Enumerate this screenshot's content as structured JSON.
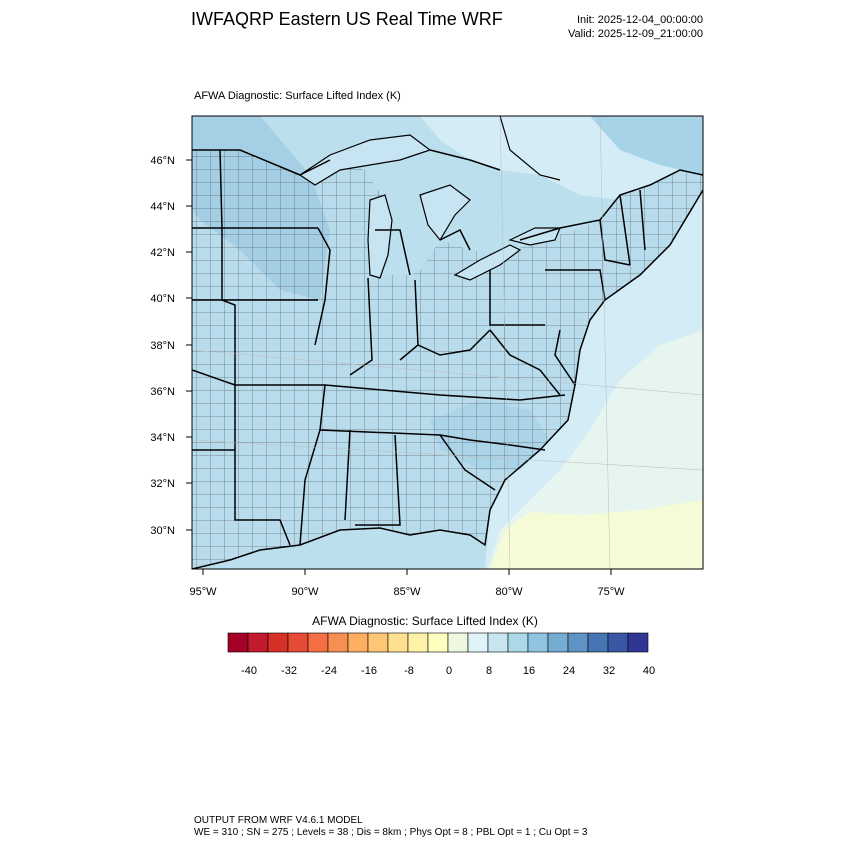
{
  "header": {
    "title": "IWFAQRP Eastern US Real Time WRF",
    "init": "Init: 2025-12-04_00:00:00",
    "valid": "Valid: 2025-12-09_21:00:00"
  },
  "plot": {
    "subtitle": "AFWA Diagnostic: Surface Lifted Index   (K)",
    "lat_labels": [
      "46°N",
      "44°N",
      "42°N",
      "40°N",
      "38°N",
      "36°N",
      "34°N",
      "32°N",
      "30°N"
    ],
    "lon_labels": [
      "95°W",
      "90°W",
      "85°W",
      "80°W",
      "75°W"
    ]
  },
  "colorbar": {
    "title": "AFWA Diagnostic: Surface Lifted Index  (K)",
    "tick_labels": [
      "-40",
      "-32",
      "-24",
      "-16",
      "-8",
      "0",
      "8",
      "16",
      "24",
      "32",
      "40"
    ],
    "colors": [
      "#a50026",
      "#c21a2c",
      "#d73027",
      "#e64b35",
      "#f46d43",
      "#f78e52",
      "#fdae61",
      "#fdc676",
      "#fee090",
      "#fef1a8",
      "#ffffbf",
      "#eef8de",
      "#e0f3f8",
      "#c8e6f0",
      "#abd9e9",
      "#91c4e0",
      "#74add1",
      "#5e93c4",
      "#4575b4",
      "#3a57a6",
      "#313695"
    ]
  },
  "footer": {
    "line1": "OUTPUT FROM WRF V4.6.1 MODEL",
    "line2": "WE = 310 ; SN = 275 ; Levels = 38 ; Dis = 8km ; Phys Opt = 8 ; PBL Opt = 1 ; Cu Opt = 3"
  }
}
